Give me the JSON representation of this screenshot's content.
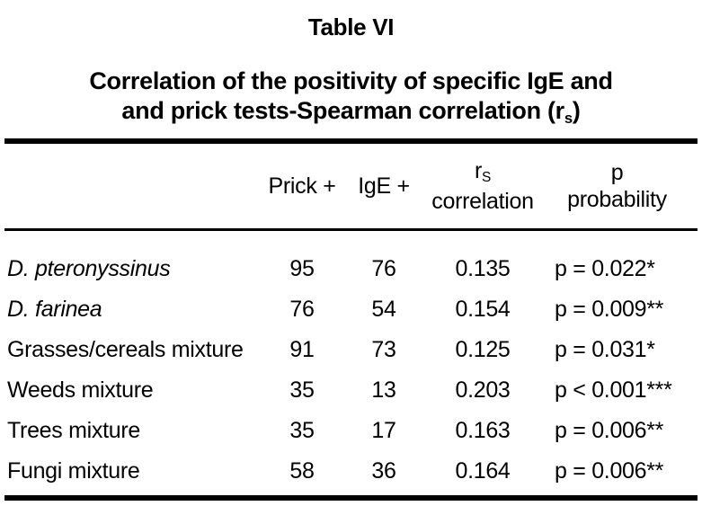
{
  "title": "Table VI",
  "subtitle": {
    "line1": "Correlation of the positivity of specific IgE and",
    "line2_prefix": "and prick tests-Spearman correlation (r",
    "line2_sub": "s",
    "line2_suffix": ")"
  },
  "table": {
    "headers": {
      "prick": "Prick +",
      "ige": "IgE +",
      "rs_base": "r",
      "rs_sub": "S",
      "rs_line2": "correlation",
      "p_line1": "p",
      "p_line2": "probability"
    },
    "rows": [
      {
        "name": "D. pteronyssinus",
        "name_style": "italic",
        "prick": "95",
        "ige": "76",
        "rs": "0.135",
        "p": "p = 0.022*"
      },
      {
        "name": "D. farinea",
        "name_style": "italic",
        "prick": "76",
        "ige": "54",
        "rs": "0.154",
        "p": "p = 0.009**"
      },
      {
        "name": "Grasses/cereals mixture",
        "name_style": "normal",
        "prick": "91",
        "ige": "73",
        "rs": "0.125",
        "p": "p = 0.031*"
      },
      {
        "name": "Weeds mixture",
        "name_style": "normal",
        "prick": "35",
        "ige": "13",
        "rs": "0.203",
        "p": "p < 0.001***"
      },
      {
        "name": "Trees mixture",
        "name_style": "normal",
        "prick": "35",
        "ige": "17",
        "rs": "0.163",
        "p": "p = 0.006**"
      },
      {
        "name": "Fungi mixture",
        "name_style": "normal",
        "prick": "58",
        "ige": "36",
        "rs": "0.164",
        "p": "p = 0.006**"
      }
    ]
  },
  "colors": {
    "text": "#000000",
    "background": "#ffffff",
    "rule": "#000000"
  }
}
